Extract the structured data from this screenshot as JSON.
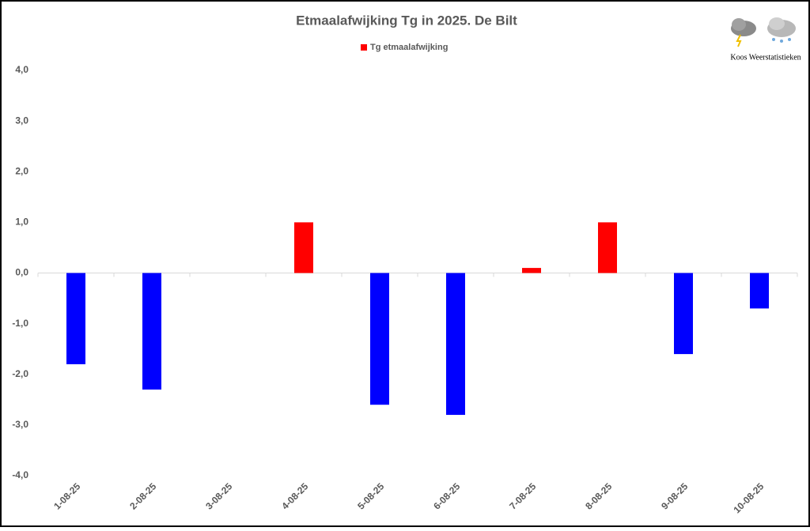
{
  "chart_data": {
    "type": "bar",
    "title": "Etmaalafwijking Tg in 2025. De Bilt",
    "watermark": "Koos Weerstatistieken",
    "categories": [
      "1-08-25",
      "2-08-25",
      "3-08-25",
      "4-08-25",
      "5-08-25",
      "6-08-25",
      "7-08-25",
      "8-08-25",
      "9-08-25",
      "10-08-25"
    ],
    "series": [
      {
        "name": "Tg etmaalafwijking",
        "color": "#ff0000",
        "negative_color": "#0000ff",
        "values": [
          -1.8,
          -2.3,
          0,
          1.0,
          -2.6,
          -2.8,
          0.1,
          1.0,
          -1.6,
          -0.7
        ]
      }
    ],
    "ylim": [
      -4,
      4
    ],
    "yticks": [
      {
        "value": -4,
        "label": "-4,0"
      },
      {
        "value": -3,
        "label": "-3,0"
      },
      {
        "value": -2,
        "label": "-2,0"
      },
      {
        "value": -1,
        "label": "-1,0"
      },
      {
        "value": 0,
        "label": "0,0"
      },
      {
        "value": 1,
        "label": "1,0"
      },
      {
        "value": 2,
        "label": "2,0"
      },
      {
        "value": 3,
        "label": "3,0"
      },
      {
        "value": 4,
        "label": "4,0"
      }
    ],
    "grid": false,
    "legend": "top"
  }
}
